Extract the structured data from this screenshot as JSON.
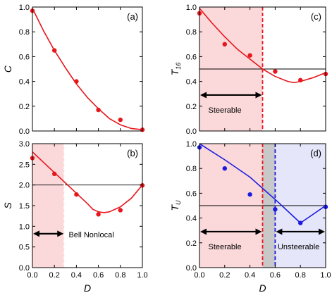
{
  "panel_labels": [
    "(a)",
    "(b)",
    "(c)",
    "(d)"
  ],
  "x_label": "D",
  "colors": {
    "red": "#e8151b",
    "blue": "#1c1ce0",
    "pink_shade": "#fbd9da",
    "lavender_shade": "#e6e6fa",
    "gray_shade": "#c8c8c8",
    "threshold_line": "#000000"
  },
  "chart_data": [
    {
      "id": "a",
      "type": "line",
      "panel_label": "(a)",
      "ylabel": "C",
      "ylabel_sub": "",
      "xlabel": "",
      "xlim": [
        0.0,
        1.0
      ],
      "ylim": [
        0.0,
        1.0
      ],
      "xticks": [
        "0.0",
        "0.2",
        "0.4",
        "0.6",
        "0.8",
        "1.0"
      ],
      "yticks": [
        "0.0",
        "0.2",
        "0.4",
        "0.6",
        "0.8",
        "1.0"
      ],
      "x_tick_labels_visible": false,
      "series": [
        {
          "kind": "points",
          "color": "red",
          "x": [
            0.0,
            0.2,
            0.4,
            0.6,
            0.8,
            1.0
          ],
          "y": [
            0.97,
            0.65,
            0.4,
            0.17,
            0.09,
            0.01
          ]
        },
        {
          "kind": "curve",
          "color": "red",
          "x": [
            0.0,
            0.1,
            0.2,
            0.3,
            0.4,
            0.5,
            0.6,
            0.7,
            0.8,
            0.9,
            1.0
          ],
          "y": [
            0.99,
            0.81,
            0.65,
            0.51,
            0.38,
            0.27,
            0.18,
            0.1,
            0.05,
            0.02,
            0.01
          ]
        }
      ]
    },
    {
      "id": "b",
      "type": "line",
      "panel_label": "(b)",
      "ylabel": "S",
      "ylabel_sub": "",
      "xlabel": "D",
      "xlim": [
        0.0,
        1.0
      ],
      "ylim": [
        0.0,
        3.0
      ],
      "xticks": [
        "0.0",
        "0.2",
        "0.4",
        "0.6",
        "0.8",
        "1.0"
      ],
      "yticks": [
        "0.0",
        "0.5",
        "1.0",
        "1.5",
        "2.0",
        "2.5",
        "3.0"
      ],
      "x_tick_labels_visible": true,
      "threshold": 2.0,
      "shade_regions": [
        {
          "x0": 0.0,
          "x1": 0.29,
          "color": "pink_shade"
        }
      ],
      "vlines": [
        {
          "x": 0.29,
          "color": "#ffffff",
          "dashed": true
        }
      ],
      "annotations": [
        {
          "text": "Bell Nonlocal",
          "x": 0.33,
          "y": 0.8,
          "anchor": "start"
        }
      ],
      "arrows": [
        {
          "x0": 0.0,
          "x1": 0.29,
          "y": 0.82
        }
      ],
      "series": [
        {
          "kind": "points",
          "color": "red",
          "x": [
            0.0,
            0.2,
            0.4,
            0.6,
            0.8,
            1.0
          ],
          "y": [
            2.65,
            2.27,
            1.77,
            1.29,
            1.39,
            1.99
          ]
        },
        {
          "kind": "curve",
          "color": "red",
          "x": [
            0.0,
            0.1,
            0.2,
            0.3,
            0.4,
            0.5,
            0.55,
            0.6,
            0.65,
            0.7,
            0.8,
            0.9,
            1.0
          ],
          "y": [
            2.8,
            2.55,
            2.3,
            2.05,
            1.8,
            1.55,
            1.41,
            1.35,
            1.33,
            1.35,
            1.47,
            1.68,
            2.0
          ]
        }
      ]
    },
    {
      "id": "c",
      "type": "line",
      "panel_label": "(c)",
      "ylabel": "T",
      "ylabel_sub": "16",
      "xlabel": "",
      "xlim": [
        0.0,
        1.0
      ],
      "ylim": [
        0.0,
        1.0
      ],
      "xticks": [
        "0.0",
        "0.2",
        "0.4",
        "0.6",
        "0.8",
        "1.0"
      ],
      "yticks": [
        "0.0",
        "0.2",
        "0.4",
        "0.6",
        "0.8",
        "1.0"
      ],
      "x_tick_labels_visible": false,
      "threshold": 0.5,
      "shade_regions": [
        {
          "x0": 0.0,
          "x1": 0.5,
          "color": "pink_shade"
        }
      ],
      "vlines": [
        {
          "x": 0.5,
          "color": "red",
          "dashed": true
        }
      ],
      "annotations": [
        {
          "text": "Steerable",
          "x": 0.07,
          "y": 0.17,
          "anchor": "start"
        }
      ],
      "arrows": [
        {
          "x0": 0.0,
          "x1": 0.5,
          "y": 0.29
        }
      ],
      "series": [
        {
          "kind": "points",
          "color": "red",
          "x": [
            0.0,
            0.2,
            0.4,
            0.6,
            0.8,
            1.0
          ],
          "y": [
            0.95,
            0.7,
            0.61,
            0.48,
            0.41,
            0.46
          ]
        },
        {
          "kind": "curve",
          "color": "red",
          "x": [
            0.0,
            0.1,
            0.2,
            0.3,
            0.4,
            0.5,
            0.6,
            0.7,
            0.75,
            0.8,
            0.9,
            1.0
          ],
          "y": [
            0.99,
            0.87,
            0.76,
            0.66,
            0.58,
            0.5,
            0.44,
            0.4,
            0.39,
            0.4,
            0.43,
            0.47
          ]
        }
      ]
    },
    {
      "id": "d",
      "type": "line",
      "panel_label": "(d)",
      "ylabel": "T",
      "ylabel_sub": "U",
      "xlabel": "D",
      "xlim": [
        0.0,
        1.0
      ],
      "ylim": [
        0.0,
        1.0
      ],
      "xticks": [
        "0.0",
        "0.2",
        "0.4",
        "0.6",
        "0.8",
        "1.0"
      ],
      "yticks": [
        "0.0",
        "0.2",
        "0.4",
        "0.6",
        "0.8",
        "1.0"
      ],
      "x_tick_labels_visible": true,
      "threshold": 0.5,
      "shade_regions": [
        {
          "x0": 0.0,
          "x1": 0.5,
          "color": "pink_shade"
        },
        {
          "x0": 0.5,
          "x1": 0.6,
          "color": "gray_shade"
        },
        {
          "x0": 0.6,
          "x1": 1.0,
          "color": "lavender_shade"
        }
      ],
      "vlines": [
        {
          "x": 0.5,
          "color": "red",
          "dashed": true
        },
        {
          "x": 0.6,
          "color": "blue",
          "dashed": true
        }
      ],
      "annotations": [
        {
          "text": "Steerable",
          "x": 0.07,
          "y": 0.17,
          "anchor": "start"
        },
        {
          "text": "Unsteerable",
          "x": 0.62,
          "y": 0.17,
          "anchor": "start"
        }
      ],
      "arrows": [
        {
          "x0": 0.0,
          "x1": 0.5,
          "y": 0.29
        },
        {
          "x0": 0.6,
          "x1": 1.0,
          "y": 0.29
        }
      ],
      "series": [
        {
          "kind": "points",
          "color": "blue",
          "x": [
            0.0,
            0.2,
            0.4,
            0.6,
            0.8,
            1.0
          ],
          "y": [
            0.97,
            0.8,
            0.59,
            0.47,
            0.36,
            0.49
          ]
        },
        {
          "kind": "curve",
          "color": "blue",
          "x": [
            0.0,
            0.2,
            0.4,
            0.6,
            0.8,
            1.0
          ],
          "y": [
            1.0,
            0.87,
            0.73,
            0.55,
            0.36,
            0.5
          ]
        }
      ]
    }
  ]
}
